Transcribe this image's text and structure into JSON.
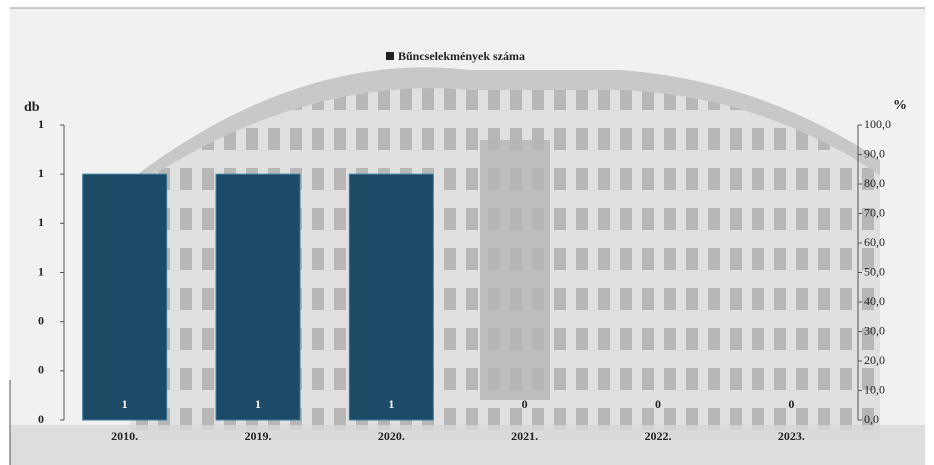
{
  "chart_data": {
    "type": "bar",
    "legend": "Bűncselekmények száma",
    "y_label": "db",
    "y2_label": "%",
    "categories": [
      "2010.",
      "2019.",
      "2020.",
      "2021.",
      "2022.",
      "2023."
    ],
    "values": [
      1,
      1,
      1,
      0,
      0,
      0
    ],
    "color": "#1d4a66",
    "ylim": [
      0,
      1.2
    ],
    "yticks": [
      {
        "value": 0,
        "label": "0"
      },
      {
        "value": 0.2,
        "label": "0"
      },
      {
        "value": 0.4,
        "label": "0"
      },
      {
        "value": 0.6,
        "label": "1"
      },
      {
        "value": 0.8,
        "label": "1"
      },
      {
        "value": 1.0,
        "label": "1"
      },
      {
        "value": 1.2,
        "label": "1"
      }
    ],
    "y2lim": [
      0,
      100
    ],
    "y2ticks": [
      {
        "value": 0,
        "label": "0,0"
      },
      {
        "value": 10,
        "label": "10,0"
      },
      {
        "value": 20,
        "label": "20,0"
      },
      {
        "value": 30,
        "label": "30,0"
      },
      {
        "value": 40,
        "label": "40,0"
      },
      {
        "value": 50,
        "label": "50,0"
      },
      {
        "value": 60,
        "label": "60,0"
      },
      {
        "value": 70,
        "label": "70,0"
      },
      {
        "value": 80,
        "label": "80,0"
      },
      {
        "value": 90,
        "label": "90,0"
      },
      {
        "value": 100,
        "label": "100,0"
      }
    ]
  }
}
